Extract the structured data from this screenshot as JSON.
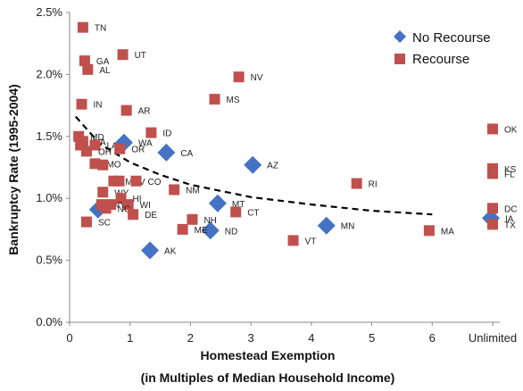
{
  "chart_data": {
    "type": "scatter",
    "xlabel": "Homestead Exemption",
    "xlabel_sub": "(in Multiples of Median Household Income)",
    "ylabel": "Bankruptcy Rate (1995-2004)",
    "xlim": [
      0,
      7
    ],
    "ylim": [
      0,
      0.025
    ],
    "x_ticks": [
      {
        "value": 0,
        "label": "0"
      },
      {
        "value": 1,
        "label": "1"
      },
      {
        "value": 2,
        "label": "2"
      },
      {
        "value": 3,
        "label": "3"
      },
      {
        "value": 4,
        "label": "4"
      },
      {
        "value": 5,
        "label": "5"
      },
      {
        "value": 6,
        "label": "6"
      },
      {
        "value": 7,
        "label": "Unlimited"
      }
    ],
    "y_ticks": [
      {
        "value": 0.0,
        "label": "0.0%"
      },
      {
        "value": 0.005,
        "label": "0.5%"
      },
      {
        "value": 0.01,
        "label": "1.0%"
      },
      {
        "value": 0.015,
        "label": "1.5%"
      },
      {
        "value": 0.02,
        "label": "2.0%"
      },
      {
        "value": 0.025,
        "label": "2.5%"
      }
    ],
    "grid": false,
    "legend_position": "top-right",
    "series": [
      {
        "name": "No Recourse",
        "color": "#4472c4",
        "marker": "diamond",
        "points": [
          {
            "label": "",
            "x": 0.47,
            "y": 0.0091
          },
          {
            "label": "WA",
            "x": 0.9,
            "y": 0.0145
          },
          {
            "label": "CA",
            "x": 1.6,
            "y": 0.0137
          },
          {
            "label": "AK",
            "x": 1.33,
            "y": 0.0058
          },
          {
            "label": "MT",
            "x": 2.45,
            "y": 0.0096
          },
          {
            "label": "ND",
            "x": 2.33,
            "y": 0.0074
          },
          {
            "label": "AZ",
            "x": 3.03,
            "y": 0.0127
          },
          {
            "label": "MN",
            "x": 4.25,
            "y": 0.0078
          },
          {
            "label": "IA",
            "x": 6.97,
            "y": 0.0084
          }
        ]
      },
      {
        "name": "Recourse",
        "color": "#c0504d",
        "marker": "square",
        "points": [
          {
            "label": "TN",
            "x": 0.22,
            "y": 0.0238
          },
          {
            "label": "UT",
            "x": 0.88,
            "y": 0.0216
          },
          {
            "label": "GA",
            "x": 0.25,
            "y": 0.0211
          },
          {
            "label": "AL",
            "x": 0.3,
            "y": 0.0204
          },
          {
            "label": "NV",
            "x": 2.8,
            "y": 0.0198
          },
          {
            "label": "MS",
            "x": 2.4,
            "y": 0.018
          },
          {
            "label": "IN",
            "x": 0.2,
            "y": 0.0176
          },
          {
            "label": "AR",
            "x": 0.94,
            "y": 0.0171
          },
          {
            "label": "ID",
            "x": 1.35,
            "y": 0.0153
          },
          {
            "label": "MD",
            "x": 0.15,
            "y": 0.015
          },
          {
            "label": "VA",
            "x": 0.22,
            "y": 0.0146
          },
          {
            "label": "",
            "x": 0.18,
            "y": 0.0143
          },
          {
            "label": "LA",
            "x": 0.42,
            "y": 0.0143
          },
          {
            "label": "OH",
            "x": 0.28,
            "y": 0.0138
          },
          {
            "label": "OR",
            "x": 0.83,
            "y": 0.014
          },
          {
            "label": "MO",
            "x": 0.42,
            "y": 0.0128
          },
          {
            "label": "",
            "x": 0.55,
            "y": 0.0127
          },
          {
            "label": "MI",
            "x": 0.73,
            "y": 0.0114
          },
          {
            "label": "WV",
            "x": 0.82,
            "y": 0.0114
          },
          {
            "label": "CO",
            "x": 1.1,
            "y": 0.0114
          },
          {
            "label": "NM",
            "x": 1.73,
            "y": 0.0107
          },
          {
            "label": "WY",
            "x": 0.55,
            "y": 0.0105
          },
          {
            "label": "HI",
            "x": 0.85,
            "y": 0.01
          },
          {
            "label": "NY",
            "x": 0.53,
            "y": 0.0095
          },
          {
            "label": "PA",
            "x": 0.68,
            "y": 0.0095
          },
          {
            "label": "WI",
            "x": 0.97,
            "y": 0.0095
          },
          {
            "label": "NC",
            "x": 0.6,
            "y": 0.0092
          },
          {
            "label": "DE",
            "x": 1.05,
            "y": 0.0087
          },
          {
            "label": "SC",
            "x": 0.28,
            "y": 0.0081
          },
          {
            "label": "NH",
            "x": 2.03,
            "y": 0.0083
          },
          {
            "label": "ME",
            "x": 1.87,
            "y": 0.0075
          },
          {
            "label": "CT",
            "x": 2.75,
            "y": 0.0089
          },
          {
            "label": "RI",
            "x": 4.75,
            "y": 0.0112
          },
          {
            "label": "VT",
            "x": 3.7,
            "y": 0.0066
          },
          {
            "label": "MA",
            "x": 5.95,
            "y": 0.0074
          },
          {
            "label": "OK",
            "x": 7.0,
            "y": 0.0156
          },
          {
            "label": "KS",
            "x": 7.0,
            "y": 0.0124
          },
          {
            "label": "FL",
            "x": 7.0,
            "y": 0.012
          },
          {
            "label": "DC",
            "x": 7.0,
            "y": 0.0092
          },
          {
            "label": "TX",
            "x": 7.0,
            "y": 0.0079
          }
        ]
      }
    ],
    "trendline": {
      "style": "dashed",
      "color": "#000000",
      "points": [
        [
          0.1,
          0.0166
        ],
        [
          0.5,
          0.0144
        ],
        [
          1,
          0.0129
        ],
        [
          1.5,
          0.0119
        ],
        [
          2,
          0.0111
        ],
        [
          3,
          0.0101
        ],
        [
          4,
          0.0095
        ],
        [
          5,
          0.009
        ],
        [
          6,
          0.0087
        ]
      ]
    }
  }
}
